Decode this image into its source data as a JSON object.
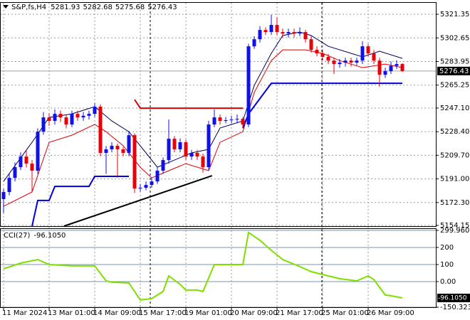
{
  "chart_data": [
    {
      "type": "candlestick",
      "title": "S&P,fs,H4",
      "categories": [
        "11 Mar 2024",
        null,
        null,
        null,
        null,
        null,
        null,
        null,
        "13 Mar 01:00",
        null,
        null,
        null,
        null,
        null,
        null,
        null,
        "14 Mar 09:00",
        null,
        null,
        null,
        null,
        null,
        null,
        null,
        "15 Mar 17:00",
        null,
        null,
        null,
        null,
        null,
        null,
        null,
        "19 Mar 01:00",
        null,
        null,
        null,
        null,
        null,
        null,
        null,
        "20 Mar 09:00",
        null,
        null,
        null,
        null,
        null,
        null,
        null,
        "21 Mar 17:00",
        null,
        null,
        null,
        null,
        null,
        null,
        null,
        "25 Mar 01:00",
        null,
        null,
        null,
        null,
        null,
        null,
        null,
        "26 Mar 09:00",
        null,
        null,
        null,
        null,
        null,
        null
      ],
      "open": [
        5175.0,
        5180.6,
        5191.8,
        5200.3,
        5208.7,
        5203.1,
        5197.5,
        5228.4,
        5239.7,
        5236.9,
        5242.5,
        5239.7,
        5234.1,
        5242.5,
        5239.7,
        5241.0,
        5242.5,
        5248.2,
        5211.6,
        5214.4,
        5217.2,
        5214.4,
        5211.6,
        5225.6,
        5183.4,
        5184.0,
        5186.2,
        5189.0,
        5197.5,
        5205.9,
        5222.8,
        5214.4,
        5220.0,
        5208.7,
        5211.6,
        5208.7,
        5200.3,
        5234.1,
        5239.7,
        5236.9,
        5237.5,
        5238.0,
        5238.5,
        5234.1,
        5296.0,
        5301.6,
        5308.9,
        5307.3,
        5312.9,
        5307.3,
        5306.1,
        5307.3,
        5306.1,
        5307.3,
        5301.6,
        5293.2,
        5290.4,
        5287.6,
        5284.7,
        5281.9,
        5283.1,
        5284.7,
        5283.1,
        5284.7,
        5296.0,
        5290.4,
        5284.7,
        5273.5,
        5276.3,
        5280.5,
        5281.93
      ],
      "high": [
        5183,
        5195,
        5204,
        5212,
        5214,
        5206,
        5231,
        5244,
        5243,
        5246,
        5245,
        5242,
        5245,
        5245,
        5244,
        5245,
        5251,
        5250,
        5217,
        5220,
        5219,
        5216,
        5229,
        5227,
        5187,
        5189,
        5192,
        5200,
        5208,
        5238,
        5225,
        5223,
        5222,
        5214,
        5214,
        5211,
        5237,
        5246,
        5242,
        5240,
        5241,
        5242,
        5240,
        5298,
        5304,
        5312,
        5311,
        5321,
        5319,
        5310,
        5310,
        5310,
        5311,
        5309,
        5304,
        5296,
        5293,
        5290,
        5287,
        5286,
        5287,
        5287,
        5287,
        5300,
        5298,
        5293,
        5287,
        5279,
        5284,
        5285,
        5282.68
      ],
      "low": [
        5164,
        5178,
        5189,
        5198,
        5200,
        5181,
        5195,
        5226,
        5233,
        5234,
        5236,
        5231,
        5232,
        5237,
        5237,
        5238,
        5240,
        5209,
        5195,
        5212,
        5192,
        5209,
        5209,
        5180,
        5181,
        5182,
        5184,
        5187,
        5195,
        5203,
        5212,
        5212,
        5206,
        5206,
        5206,
        5196,
        5198,
        5232,
        5234,
        5235,
        5235,
        5235,
        5231,
        5232,
        5294,
        5299,
        5305,
        5305,
        5305,
        5303,
        5303,
        5303,
        5304,
        5299,
        5291,
        5288,
        5285,
        5282,
        5274,
        5279,
        5280,
        5280,
        5281,
        5282,
        5288,
        5282,
        5264,
        5271,
        5274,
        5278,
        5275.68
      ],
      "close": [
        5180.6,
        5191.8,
        5200.3,
        5208.7,
        5203.1,
        5197.5,
        5228.4,
        5239.7,
        5236.9,
        5242.5,
        5239.7,
        5234.1,
        5242.5,
        5239.7,
        5241.0,
        5242.5,
        5248.2,
        5211.6,
        5214.4,
        5217.2,
        5214.4,
        5211.6,
        5225.6,
        5183.4,
        5184.0,
        5186.2,
        5189.0,
        5197.5,
        5205.9,
        5222.8,
        5214.4,
        5220.0,
        5208.7,
        5211.6,
        5208.7,
        5200.3,
        5234.1,
        5239.7,
        5236.9,
        5237.5,
        5238.0,
        5238.5,
        5234.1,
        5296.0,
        5301.6,
        5308.9,
        5307.3,
        5312.9,
        5307.3,
        5306.1,
        5307.3,
        5306.1,
        5307.3,
        5301.6,
        5293.2,
        5290.4,
        5287.6,
        5284.7,
        5281.9,
        5283.1,
        5284.7,
        5283.1,
        5284.7,
        5296.0,
        5290.4,
        5284.7,
        5273.5,
        5276.3,
        5280.5,
        5281.93,
        5276.43
      ],
      "up_color": "#1010e8",
      "down_color": "#e8000b",
      "ylim": [
        5153.6,
        5330.4
      ],
      "yticks": [
        5321.35,
        5302.65,
        5283.95,
        5265.25,
        {
          "value": 5247.1,
          "label": "5247.10"
        },
        {
          "value": 5228.4,
          "label": "5228.40"
        },
        {
          "value": 5209.7,
          "label": "5209.70"
        },
        {
          "value": 5191,
          "label": "5191.00"
        },
        {
          "value": 5172.3,
          "label": "5172.30"
        },
        5154.15
      ],
      "grid": true,
      "lines": [
        {
          "color": "#000060",
          "x": [
            0,
            5,
            8,
            12,
            16,
            19,
            22,
            25,
            27,
            30,
            33,
            36,
            38,
            42,
            44,
            47,
            49,
            52,
            54,
            57,
            61,
            63,
            66,
            70
          ],
          "values": [
            5189.0,
            5220.0,
            5239.7,
            5242.5,
            5248.2,
            5236.9,
            5228.4,
            5211.6,
            5200.3,
            5205.9,
            5211.6,
            5214.4,
            5231.3,
            5236.9,
            5265.0,
            5290.4,
            5304.5,
            5307.3,
            5304.5,
            5296.0,
            5290.4,
            5287.6,
            5292.1,
            5286.4
          ]
        },
        {
          "color": "#dd0000",
          "x": [
            0,
            5,
            8,
            12,
            16,
            18,
            21,
            24,
            26,
            29,
            32,
            36,
            38,
            42,
            44,
            47,
            49,
            53,
            56,
            59,
            63,
            67,
            70
          ],
          "values": [
            5169.3,
            5180.6,
            5220.0,
            5225.6,
            5234.1,
            5228.4,
            5217.2,
            5200.3,
            5191.8,
            5197.5,
            5203.1,
            5197.5,
            5220.0,
            5228.4,
            5259.4,
            5284.7,
            5293.2,
            5293.2,
            5290.4,
            5284.7,
            5279.1,
            5281.9,
            5279.1
          ]
        },
        {
          "color": "#0000dd",
          "x": [
            5,
            6,
            8,
            9,
            15,
            16,
            22,
            30,
            42,
            43,
            47,
            70
          ],
          "values": [
            5153.6,
            5173.9,
            5173.9,
            5185.1,
            5185.1,
            5193.0,
            5193.0,
            null,
            5231.3,
            5242.5,
            5266.7,
            5266.7
          ]
        },
        {
          "color": "#dd0000",
          "x": [
            23,
            24,
            42
          ],
          "values": [
            5253.8,
            5247.0,
            5247.0
          ]
        },
        {
          "color": "#000000",
          "x": [
            10.6,
            36.6
          ],
          "values": [
            5153.6,
            5193.5
          ]
        }
      ]
    },
    {
      "type": "line",
      "title": "CCI(27)",
      "color": "#7fe000",
      "x": [
        0,
        3,
        6,
        8,
        12,
        16,
        18,
        19,
        22,
        24,
        26,
        28,
        29,
        31,
        32,
        34,
        35,
        37,
        40,
        42,
        43,
        45,
        47,
        49,
        52,
        54,
        57,
        59,
        62,
        64,
        65,
        67,
        68,
        70
      ],
      "values": [
        75,
        108,
        129,
        100,
        92,
        92,
        4,
        -4,
        -8,
        -108,
        -100,
        -58,
        33,
        -17,
        -50,
        -50,
        -58,
        100,
        100,
        100,
        288,
        242,
        183,
        129,
        88,
        58,
        33,
        17,
        4,
        33,
        12,
        -79,
        -83,
        -96.105
      ],
      "value_labels": [
        null,
        null,
        null,
        null,
        null,
        null,
        null,
        null,
        null,
        null,
        null,
        null,
        null,
        null,
        null,
        null,
        null,
        null,
        null,
        null,
        null,
        null,
        null,
        null,
        null,
        null,
        null,
        null,
        null,
        null,
        null,
        null,
        null,
        "-96.1050"
      ],
      "ylim": [
        -150.3238,
        299.9603
      ],
      "yticks": [
        299.9603,
        200,
        100,
        {
          "value": 0,
          "label": "0.00"
        },
        -150.3238
      ]
    }
  ]
}
